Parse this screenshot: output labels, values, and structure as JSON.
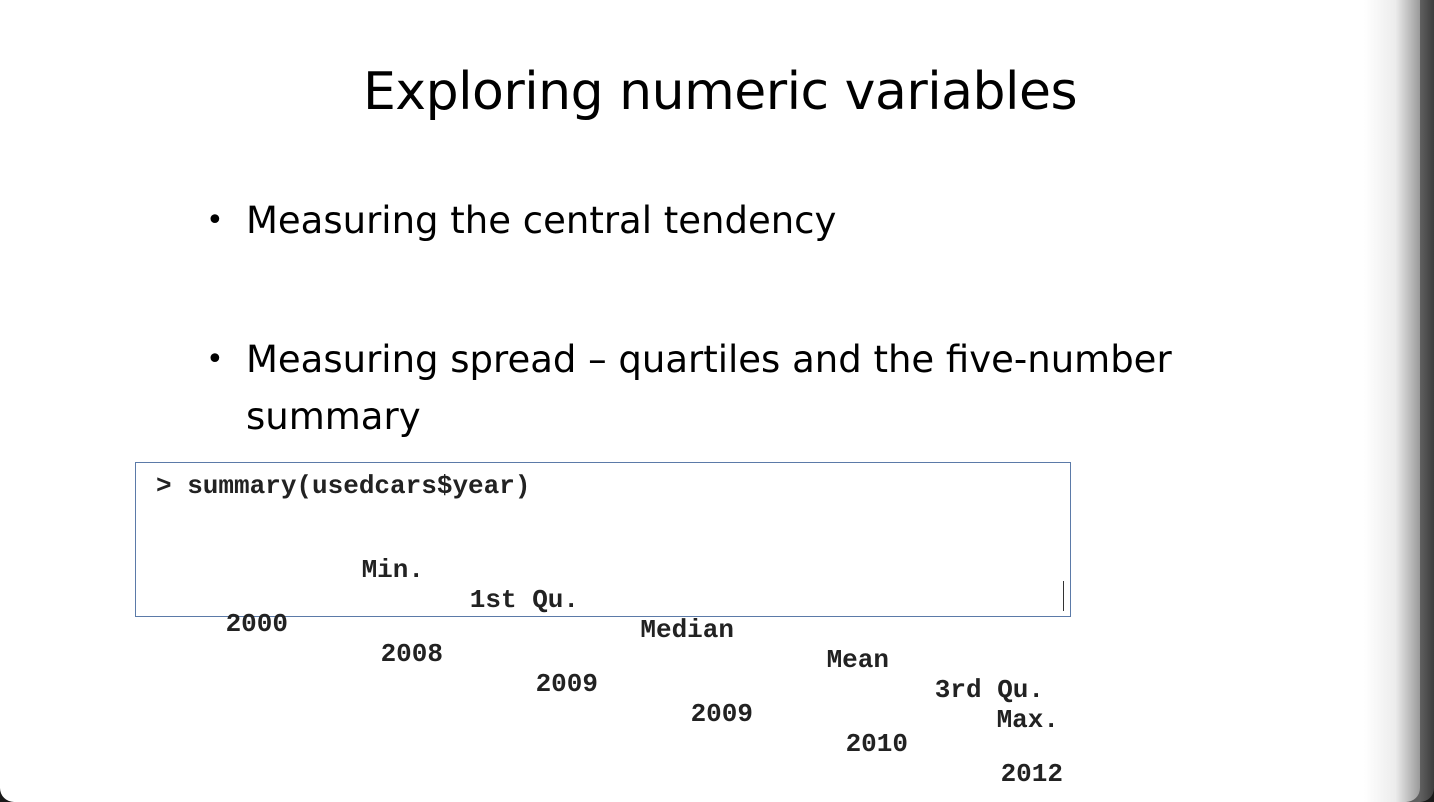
{
  "slide": {
    "title": "Exploring numeric variables",
    "bullets": [
      "Measuring the central tendency",
      "Measuring spread – quartiles and the five-number summary"
    ]
  },
  "console": {
    "command": "> summary(usedcars$year)",
    "headers": [
      "Min.",
      "1st Qu.",
      "Median",
      "Mean",
      "3rd Qu.",
      "Max."
    ],
    "values": [
      "2000",
      "2008",
      "2009",
      "2009",
      "2010",
      "2012"
    ]
  }
}
